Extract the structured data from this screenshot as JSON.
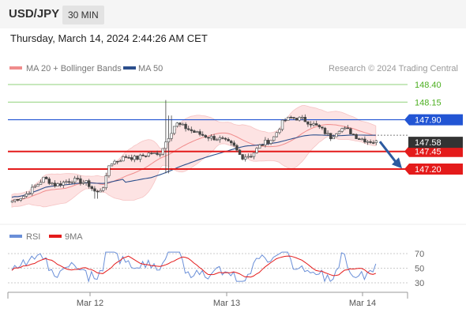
{
  "header": {
    "symbol": "USD/JPY",
    "timeframe": "30 MIN",
    "datetime": "Thursday, March 14, 2024 2:44:26 AM CET"
  },
  "watermark": "Research © 2024 Trading Central",
  "colors": {
    "ma20": "#f08c8c",
    "ma50": "#2c4f8c",
    "band_fill": "#fde3e3",
    "resistance_green": "#8fd17a",
    "level_blue": "#2255d4",
    "level_red": "#e41b1b",
    "current_price_bg": "#333333",
    "rsi": "#6a8fd8",
    "rsi_9ma": "#e41b1b",
    "candle_up": "#444444",
    "candle_down": "#444444",
    "arrow": "#2c5aa0"
  },
  "chart_data": [
    {
      "type": "line",
      "title": "",
      "legend": [
        {
          "label": "MA 20 + Bollinger Bands",
          "color": "#f08c8c"
        },
        {
          "label": "MA 50",
          "color": "#2c4f8c"
        }
      ],
      "x_ticks": [
        "Mar 12",
        "Mar 13",
        "Mar 14"
      ],
      "ylim": [
        146.65,
        148.52
      ],
      "price_levels": [
        {
          "value": 148.4,
          "label": "148.40",
          "style": "green"
        },
        {
          "value": 148.15,
          "label": "148.15",
          "style": "green"
        },
        {
          "value": 147.9,
          "label": "147.90",
          "style": "blue"
        },
        {
          "value": 147.45,
          "label": "147.45",
          "style": "red"
        },
        {
          "value": 147.2,
          "label": "147.20",
          "style": "red"
        }
      ],
      "current_price": {
        "value": 147.58,
        "label": "147.58"
      },
      "forecast_arrow": {
        "from": 147.59,
        "to": 147.22,
        "direction": "down"
      }
    },
    {
      "type": "line",
      "title": "",
      "legend": [
        {
          "label": "RSI",
          "color": "#6a8fd8"
        },
        {
          "label": "9MA",
          "color": "#e41b1b"
        }
      ],
      "y_ticks": [
        {
          "value": 70,
          "label": "70"
        },
        {
          "value": 50,
          "label": "50"
        },
        {
          "value": 30,
          "label": "30"
        }
      ],
      "ylim": [
        22,
        78
      ]
    }
  ]
}
